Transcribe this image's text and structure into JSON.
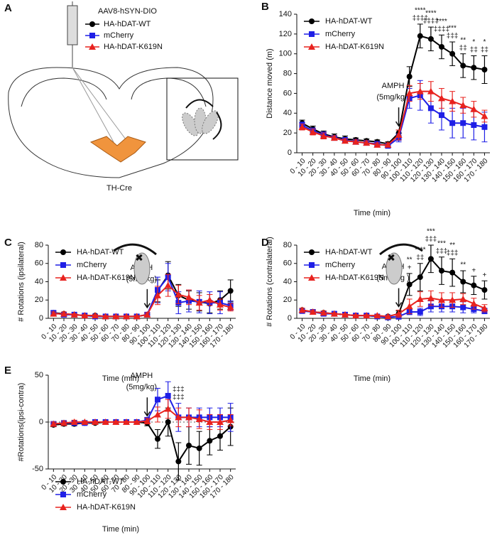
{
  "panel_a": {
    "label": "A",
    "vector": "AAV8-hSYN-DIO",
    "legend": [
      "HA-hDAT-WT",
      "mCherry",
      "HA-hDAT-K619N"
    ],
    "mouse_line": "TH-Cre"
  },
  "chart_data": [
    {
      "type": "line",
      "label": "B",
      "ylabel": "Distance  moved  (m)",
      "xlabel": "Time (min)",
      "legend": "upper left",
      "categories": [
        "0 - 10",
        "10 - 20",
        "20 - 30",
        "30 - 40",
        "40 - 50",
        "50 - 60",
        "60 - 70",
        "70 - 80",
        "80 - 90",
        "90 - 100",
        "100 - 110",
        "110 - 120",
        "120 - 130",
        "130 - 140",
        "140 - 150",
        "150 - 160",
        "160 - 170",
        "170 - 180"
      ],
      "ylim": [
        0,
        140
      ],
      "yticks": [
        0,
        20,
        40,
        60,
        80,
        100,
        120,
        140
      ],
      "arrow_label": [
        "AMPH",
        "(5mg/kg )"
      ],
      "annotations": [
        null,
        null,
        null,
        null,
        null,
        null,
        null,
        null,
        null,
        null,
        null,
        [
          "****",
          "‡‡‡‡"
        ],
        [
          "****",
          "‡‡‡‡"
        ],
        [
          "****",
          "‡‡‡‡"
        ],
        [
          "***",
          "‡‡‡"
        ],
        [
          "**",
          "‡‡"
        ],
        [
          "*",
          "‡‡"
        ],
        [
          "*",
          "‡‡"
        ]
      ],
      "series": [
        {
          "name": "HA-hDAT-WT",
          "color": "#000000",
          "marker": "circle",
          "values": [
            30,
            24,
            19,
            16,
            14,
            13,
            12,
            11,
            9,
            20,
            77,
            118,
            115,
            107,
            100,
            88,
            86,
            84
          ],
          "errors": [
            3,
            3,
            3,
            3,
            3,
            2,
            2,
            2,
            2,
            3,
            10,
            12,
            12,
            12,
            12,
            12,
            12,
            14
          ]
        },
        {
          "name": "mCherry",
          "color": "#1f1fe6",
          "marker": "square",
          "values": [
            28,
            22,
            18,
            15,
            13,
            11,
            10,
            9,
            7,
            15,
            55,
            58,
            45,
            38,
            30,
            30,
            28,
            26
          ],
          "errors": [
            3,
            3,
            3,
            2,
            2,
            2,
            2,
            2,
            2,
            4,
            10,
            15,
            15,
            15,
            15,
            15,
            15,
            15
          ]
        },
        {
          "name": "HA-hDAT-K619N",
          "color": "#e8231f",
          "marker": "triangle",
          "values": [
            26,
            21,
            17,
            15,
            12,
            11,
            10,
            8,
            8,
            18,
            60,
            62,
            62,
            55,
            52,
            48,
            44,
            37
          ],
          "errors": [
            3,
            3,
            3,
            2,
            2,
            2,
            2,
            2,
            2,
            5,
            8,
            8,
            10,
            10,
            10,
            8,
            8,
            6
          ]
        }
      ]
    },
    {
      "type": "line",
      "label": "C",
      "ylabel": "# Rotations  (ipsilateral)",
      "xlabel": "Time (min)",
      "legend": "upper left",
      "categories": [
        "0 - 10",
        "10 - 20",
        "20 - 30",
        "30 - 40",
        "40 - 50",
        "50 - 60",
        "60 - 70",
        "70 - 80",
        "80 - 90",
        "90 - 100",
        "100 - 110",
        "110 - 120",
        "120 - 130",
        "130 - 140",
        "140 - 150",
        "150 - 160",
        "160 - 170",
        "170 - 180"
      ],
      "ylim": [
        0,
        80
      ],
      "yticks": [
        0,
        20,
        40,
        60,
        80
      ],
      "arrow_label": [
        "AMPH",
        "(5mg/kg)"
      ],
      "series": [
        {
          "name": "HA-hDAT-WT",
          "color": "#000000",
          "marker": "circle",
          "values": [
            6,
            5,
            4,
            3,
            3,
            2,
            2,
            2,
            2,
            4,
            30,
            47,
            25,
            20,
            18,
            16,
            20,
            30
          ],
          "errors": [
            2,
            2,
            1,
            1,
            1,
            1,
            1,
            1,
            1,
            2,
            12,
            15,
            12,
            10,
            10,
            10,
            10,
            12
          ]
        },
        {
          "name": "mCherry",
          "color": "#1f1fe6",
          "marker": "square",
          "values": [
            6,
            4,
            4,
            3,
            2,
            2,
            2,
            2,
            2,
            4,
            31,
            45,
            17,
            19,
            18,
            17,
            17,
            14
          ],
          "errors": [
            2,
            2,
            1,
            1,
            1,
            1,
            1,
            1,
            1,
            2,
            14,
            15,
            12,
            12,
            12,
            12,
            12,
            5
          ]
        },
        {
          "name": "HA-hDAT-K619N",
          "color": "#e8231f",
          "marker": "triangle",
          "values": [
            5,
            5,
            4,
            3,
            3,
            2,
            2,
            2,
            2,
            4,
            25,
            36,
            26,
            23,
            17,
            20,
            15,
            12
          ],
          "errors": [
            2,
            2,
            1,
            1,
            1,
            1,
            1,
            1,
            1,
            2,
            10,
            12,
            10,
            8,
            8,
            6,
            6,
            4
          ]
        }
      ]
    },
    {
      "type": "line",
      "label": "D",
      "ylabel": "# Rotations  (contralateral)",
      "xlabel": "Time (min)",
      "legend": "upper left",
      "categories": [
        "0 - 10",
        "10 - 20",
        "20 - 30",
        "30 - 40",
        "40 - 50",
        "50 - 60",
        "60 - 70",
        "70 - 80",
        "80 - 90",
        "90 - 100",
        "100 - 110",
        "110 - 120",
        "120 - 130",
        "130 - 140",
        "140 - 150",
        "150 - 160",
        "160 - 170",
        "170 - 180"
      ],
      "ylim": [
        0,
        80
      ],
      "yticks": [
        0,
        20,
        40,
        60,
        80
      ],
      "arrow_label": [
        "AMPH",
        "(5mg/kg )"
      ],
      "annotations": [
        null,
        null,
        null,
        null,
        null,
        null,
        null,
        null,
        null,
        null,
        [
          "**",
          "+"
        ],
        [
          "****",
          "‡‡"
        ],
        [
          "***",
          "‡‡‡"
        ],
        [
          "***",
          "‡‡‡"
        ],
        [
          "**",
          "‡‡‡"
        ],
        [
          "**"
        ],
        [
          "+"
        ],
        [
          "+"
        ]
      ],
      "series": [
        {
          "name": "HA-hDAT-WT",
          "color": "#000000",
          "marker": "circle",
          "values": [
            9,
            7,
            6,
            5,
            4,
            3,
            3,
            2,
            2,
            5,
            37,
            45,
            65,
            52,
            50,
            40,
            36,
            31
          ],
          "errors": [
            2,
            2,
            2,
            1,
            1,
            1,
            1,
            1,
            1,
            3,
            12,
            15,
            15,
            15,
            15,
            12,
            10,
            10
          ]
        },
        {
          "name": "mCherry",
          "color": "#1f1fe6",
          "marker": "square",
          "values": [
            8,
            7,
            5,
            5,
            4,
            3,
            3,
            2,
            1,
            2,
            7,
            7,
            13,
            13,
            13,
            12,
            10,
            8
          ],
          "errors": [
            2,
            2,
            2,
            1,
            1,
            1,
            1,
            1,
            1,
            3,
            3,
            4,
            6,
            6,
            6,
            6,
            4,
            3
          ]
        },
        {
          "name": "HA-hDAT-K619N",
          "color": "#e8231f",
          "marker": "triangle",
          "values": [
            9,
            7,
            6,
            5,
            4,
            3,
            3,
            3,
            2,
            5,
            13,
            21,
            22,
            20,
            20,
            21,
            16,
            11
          ],
          "errors": [
            2,
            2,
            2,
            1,
            1,
            1,
            1,
            1,
            1,
            4,
            8,
            8,
            8,
            8,
            8,
            6,
            6,
            4
          ]
        }
      ]
    },
    {
      "type": "line",
      "label": "E",
      "ylabel": "#Rotations(ipsi-contra)",
      "xlabel": "Time (min)",
      "legend": "lower left",
      "zero_line": true,
      "categories": [
        "0 - 10",
        "10 - 20",
        "20 - 30",
        "30 - 40",
        "40 - 50",
        "50 - 60",
        "60 - 70",
        "70 - 80",
        "80 - 90",
        "90 - 100",
        "100 - 110",
        "110 - 120",
        "120 - 130",
        "130 - 140",
        "140 - 150",
        "150 - 160",
        "160 - 170",
        "170 - 180"
      ],
      "ylim": [
        -50,
        50
      ],
      "yticks": [
        -50,
        0,
        50
      ],
      "arrow_label": [
        "AMPH",
        "(5mg/kg)"
      ],
      "annotations": [
        null,
        null,
        null,
        null,
        null,
        null,
        null,
        null,
        null,
        null,
        null,
        null,
        [
          "‡‡‡",
          "‡‡‡"
        ],
        null,
        null,
        null,
        null,
        null
      ],
      "series": [
        {
          "name": "HA-hDAT-WT",
          "color": "#000000",
          "marker": "circle",
          "values": [
            -3,
            -2,
            -2,
            -1,
            -1,
            0,
            0,
            0,
            0,
            -1,
            -18,
            0,
            -42,
            -25,
            -28,
            -20,
            -15,
            -5
          ],
          "errors": [
            2,
            2,
            2,
            1,
            1,
            1,
            1,
            1,
            1,
            3,
            10,
            15,
            20,
            20,
            18,
            15,
            15,
            20
          ]
        },
        {
          "name": "mCherry",
          "color": "#1f1fe6",
          "marker": "square",
          "values": [
            -2,
            -1,
            -1,
            -1,
            0,
            0,
            0,
            0,
            0,
            2,
            24,
            28,
            5,
            5,
            5,
            5,
            5,
            5
          ],
          "errors": [
            2,
            2,
            2,
            1,
            1,
            1,
            1,
            1,
            1,
            3,
            12,
            15,
            15,
            10,
            10,
            10,
            10,
            15
          ]
        },
        {
          "name": "HA-hDAT-K619N",
          "color": "#e8231f",
          "marker": "triangle",
          "values": [
            -2,
            -1,
            0,
            0,
            0,
            0,
            0,
            0,
            0,
            1,
            8,
            14,
            5,
            5,
            3,
            0,
            0,
            2
          ],
          "errors": [
            2,
            2,
            2,
            1,
            1,
            1,
            1,
            1,
            1,
            3,
            8,
            10,
            10,
            10,
            10,
            8,
            8,
            6
          ]
        }
      ]
    }
  ]
}
